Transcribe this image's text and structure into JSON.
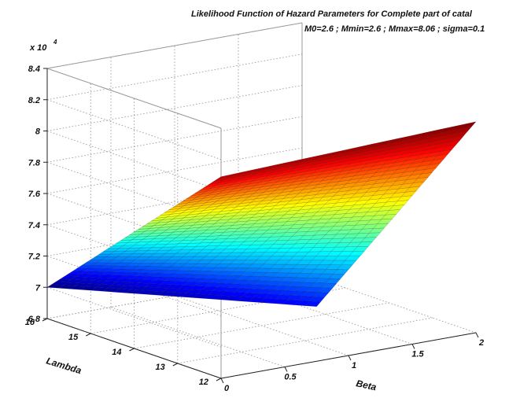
{
  "title_line1": "Likelihood Function of Hazard Parameters for Complete part of catal",
  "title_line2": "M0=2.6 ; Mmin=2.6 ; Mmax=8.06 ; sigma=0.1",
  "colors": {
    "grid": "#9a9a9a",
    "axis": "#222222",
    "colormap": "jet"
  },
  "chart_data": {
    "type": "surface",
    "title": "Likelihood Function of Hazard Parameters for Complete part of catal",
    "subtitle": "M0=2.6 ; Mmin=2.6 ; Mmax=8.06 ; sigma=0.1",
    "xlabel": "Beta",
    "ylabel": "Lambda",
    "zlabel": "",
    "z_exponent_label": "x 10",
    "z_exponent": "4",
    "xlim": [
      0,
      2
    ],
    "ylim": [
      12,
      16
    ],
    "zlim": [
      68000,
      84000
    ],
    "x_ticks": [
      "0",
      "0.5",
      "1",
      "1.5",
      "2"
    ],
    "y_ticks": [
      "12",
      "13",
      "14",
      "15",
      "16"
    ],
    "z_ticks": [
      "6.8",
      "7",
      "7.2",
      "7.4",
      "7.6",
      "7.8",
      "8",
      "8.2",
      "8.4"
    ],
    "grid": true,
    "corners": [
      {
        "beta": 0.0,
        "lambda": 16,
        "z": 70000
      },
      {
        "beta": 0.75,
        "lambda": 12,
        "z": 71500
      },
      {
        "beta": 2.0,
        "lambda": 12,
        "z": 81500
      },
      {
        "beta": 0.0,
        "lambda": 12,
        "z": 80900
      }
    ]
  }
}
